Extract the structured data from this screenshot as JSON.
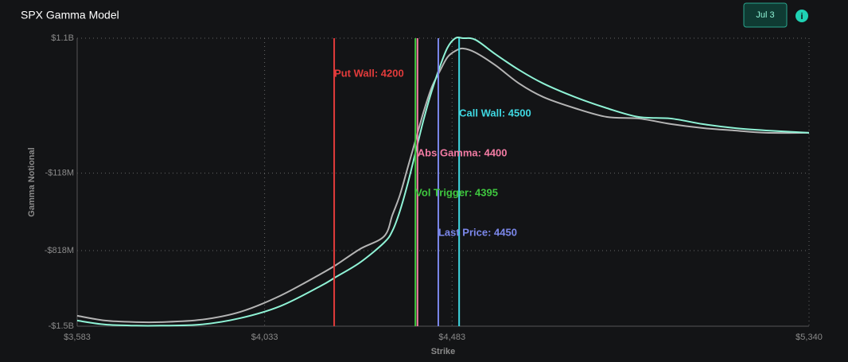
{
  "chart_data": {
    "type": "line",
    "title": "SPX Gamma Model",
    "button": "Jul 3",
    "x_label": "Strike",
    "y_label": "Gamma Notional",
    "x": [
      3583,
      3650,
      3725,
      3783,
      3880,
      3975,
      4070,
      4166,
      4205,
      4262,
      4320,
      4340,
      4358,
      4377,
      4396,
      4415,
      4434,
      4453,
      4472,
      4491,
      4510,
      4539,
      4587,
      4644,
      4702,
      4778,
      4855,
      4931,
      5008,
      5084,
      5160,
      5237,
      5340
    ],
    "series": [
      {
        "color": "#b4b4b4",
        "values": [
          -1406000000,
          -1449000000,
          -1463000000,
          -1463000000,
          -1442000000,
          -1370000000,
          -1226000000,
          -1032000000,
          -946000000,
          -803000000,
          -688000000,
          -494000000,
          -314000000,
          -63000000,
          188000000,
          439000000,
          655000000,
          798000000,
          928000000,
          985000000,
          1007000000,
          971000000,
          856000000,
          691000000,
          569000000,
          468000000,
          389000000,
          375000000,
          325000000,
          289000000,
          267000000,
          246000000,
          246000000
        ]
      },
      {
        "color": "#8ff3d6",
        "values": [
          -1449000000,
          -1485000000,
          -1495000000,
          -1495000000,
          -1485000000,
          -1427000000,
          -1320000000,
          -1140000000,
          -1054000000,
          -925000000,
          -745000000,
          -638000000,
          -458000000,
          -207000000,
          80000000,
          368000000,
          619000000,
          834000000,
          1014000000,
          1100000000,
          1100000000,
          1086000000,
          956000000,
          813000000,
          691000000,
          569000000,
          468000000,
          389000000,
          375000000,
          325000000,
          289000000,
          267000000,
          246000000
        ]
      }
    ],
    "xlim": [
      3583,
      5340
    ],
    "xticks": [
      {
        "value": 3583,
        "label": "$3,583"
      },
      {
        "value": 4033,
        "label": "$4,033"
      },
      {
        "value": 4483,
        "label": "$4,483"
      },
      {
        "value": 5340,
        "label": "$5,340"
      }
    ],
    "ylim": [
      -1500000000,
      1100000000
    ],
    "yticks": [
      {
        "value": -1500000000,
        "label": "-$1.5B"
      },
      {
        "value": -818000000,
        "label": "-$818M"
      },
      {
        "value": -118000000,
        "label": "-$118M"
      },
      {
        "value": 1100000000,
        "label": "$1.1B"
      }
    ],
    "grid": true,
    "vlines": [
      {
        "label": "Put Wall: 4200",
        "value": 4200,
        "color": "#e23b3b"
      },
      {
        "label": "Vol Trigger: 4395",
        "value": 4395,
        "color": "#3fc83f"
      },
      {
        "label": "Abs Gamma: 4400",
        "value": 4400,
        "color": "#f27ba3"
      },
      {
        "label": "Last Price: 4450",
        "value": 4450,
        "color": "#7b87ea"
      },
      {
        "label": "Call Wall: 4500",
        "value": 4500,
        "color": "#3fd8e2"
      }
    ]
  }
}
